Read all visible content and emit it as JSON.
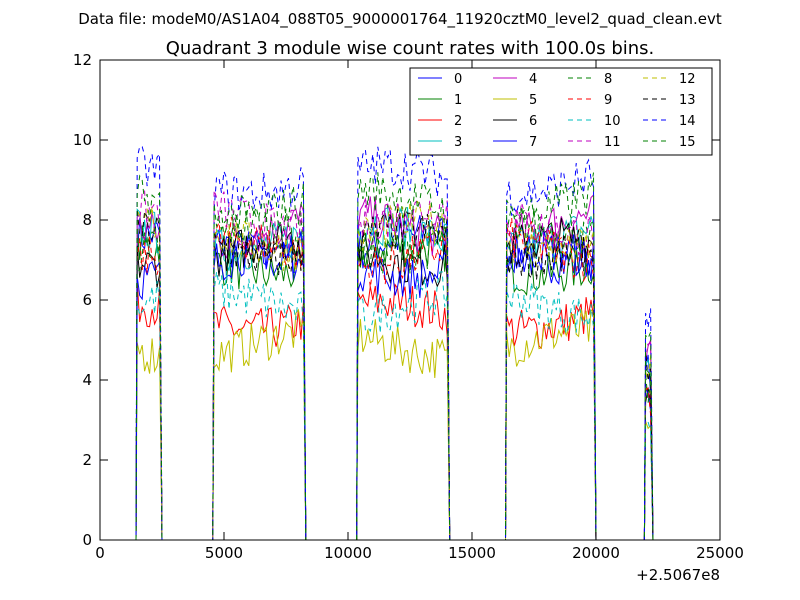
{
  "figure": {
    "suptitle": "Data file: modeM0/AS1A04_088T05_9000001764_11920cztM0_level2_quad_clean.evt"
  },
  "chart_data": {
    "type": "line",
    "title": "Quadrant 3 module wise count rates with 100.0s bins.",
    "xlabel": "",
    "ylabel": "",
    "xlim": [
      0,
      25000
    ],
    "ylim": [
      0,
      12
    ],
    "x_offset_label": "+2.5067e8",
    "x_ticks": [
      0,
      5000,
      10000,
      15000,
      20000,
      25000
    ],
    "y_ticks": [
      0,
      2,
      4,
      6,
      8,
      10,
      12
    ],
    "grid": false,
    "legend_position": "top-right",
    "legend_columns": 4,
    "segments": [
      {
        "start": 1500,
        "end": 2400
      },
      {
        "start": 4600,
        "end": 8200
      },
      {
        "start": 10400,
        "end": 14000
      },
      {
        "start": 16400,
        "end": 19900
      },
      {
        "start": 22000,
        "end": 22200
      }
    ],
    "series": [
      {
        "name": "0",
        "color": "#0000ff",
        "dash": "solid",
        "level": 7.3
      },
      {
        "name": "1",
        "color": "#008000",
        "dash": "solid",
        "level": 7.0
      },
      {
        "name": "2",
        "color": "#ff0000",
        "dash": "solid",
        "level": 5.6
      },
      {
        "name": "3",
        "color": "#00bfbf",
        "dash": "solid",
        "level": 7.6
      },
      {
        "name": "4",
        "color": "#bf00bf",
        "dash": "solid",
        "level": 7.8
      },
      {
        "name": "5",
        "color": "#bfbf00",
        "dash": "solid",
        "level": 4.9
      },
      {
        "name": "6",
        "color": "#000000",
        "dash": "solid",
        "level": 7.2
      },
      {
        "name": "7",
        "color": "#0000ff",
        "dash": "solid",
        "level": 6.9
      },
      {
        "name": "8",
        "color": "#008000",
        "dash": "dashed",
        "level": 7.5
      },
      {
        "name": "9",
        "color": "#ff0000",
        "dash": "dashed",
        "level": 7.2
      },
      {
        "name": "10",
        "color": "#00bfbf",
        "dash": "dashed",
        "level": 5.9
      },
      {
        "name": "11",
        "color": "#bf00bf",
        "dash": "dashed",
        "level": 8.0
      },
      {
        "name": "12",
        "color": "#bfbf00",
        "dash": "dashed",
        "level": 7.6
      },
      {
        "name": "13",
        "color": "#000000",
        "dash": "dashed",
        "level": 7.4
      },
      {
        "name": "14",
        "color": "#0000ff",
        "dash": "dashed",
        "level": 9.0
      },
      {
        "name": "15",
        "color": "#008000",
        "dash": "dashed",
        "level": 8.4
      }
    ]
  }
}
